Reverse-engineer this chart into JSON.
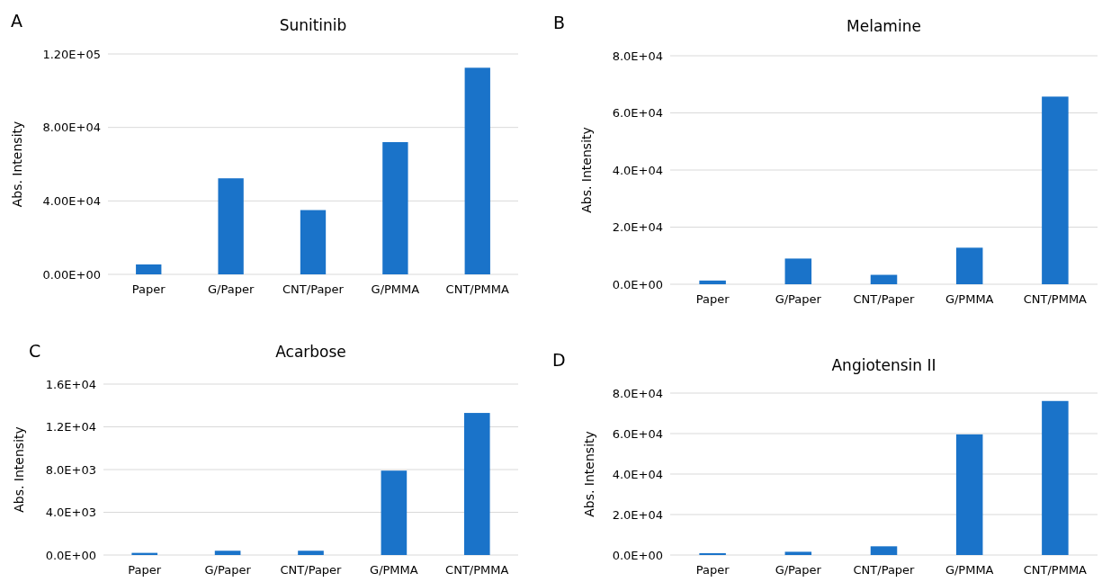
{
  "chart_data": [
    {
      "type": "bar",
      "title": "Sunitinib",
      "ylabel": "Abs. Intensity",
      "annotations": [
        "A"
      ],
      "categories": [
        "Paper",
        "G/Paper",
        "CNT/Paper",
        "G/PMMA",
        "CNT/PMMA"
      ],
      "values": [
        5400,
        52300,
        35000,
        72000,
        112500
      ],
      "color": "#1a73c9",
      "ylim": [
        0,
        120000
      ],
      "yticks": [
        {
          "value": 0,
          "label": "0.00E+00"
        },
        {
          "value": 40000,
          "label": "4.00E+04"
        },
        {
          "value": 80000,
          "label": "8.00E+04"
        },
        {
          "value": 120000,
          "label": "1.20E+05"
        }
      ],
      "grid": "y"
    },
    {
      "type": "bar",
      "title": "Melamine",
      "ylabel": "Abs. Intensity",
      "annotations": [
        "B"
      ],
      "categories": [
        "Paper",
        "G/Paper",
        "CNT/Paper",
        "G/PMMA",
        "CNT/PMMA"
      ],
      "values": [
        1300,
        9000,
        3300,
        12800,
        65700
      ],
      "color": "#1a73c9",
      "ylim": [
        0,
        80000
      ],
      "yticks": [
        {
          "value": 0,
          "label": "0.0E+00"
        },
        {
          "value": 20000,
          "label": "2.0E+04"
        },
        {
          "value": 40000,
          "label": "4.0E+04"
        },
        {
          "value": 60000,
          "label": "6.0E+04"
        },
        {
          "value": 80000,
          "label": "8.0E+04"
        }
      ],
      "grid": "y"
    },
    {
      "type": "bar",
      "title": "Acarbose",
      "ylabel": "Abs. Intensity",
      "annotations": [
        "C"
      ],
      "categories": [
        "Paper",
        "G/Paper",
        "CNT/Paper",
        "G/PMMA",
        "CNT/PMMA"
      ],
      "values": [
        200,
        400,
        400,
        7900,
        13300
      ],
      "color": "#1a73c9",
      "ylim": [
        0,
        16000
      ],
      "yticks": [
        {
          "value": 0,
          "label": "0.0E+00"
        },
        {
          "value": 4000,
          "label": "4.0E+03"
        },
        {
          "value": 8000,
          "label": "8.0E+03"
        },
        {
          "value": 12000,
          "label": "1.2E+04"
        },
        {
          "value": 16000,
          "label": "1.6E+04"
        }
      ],
      "grid": "y"
    },
    {
      "type": "bar",
      "title": "Angiotensin II",
      "ylabel": "Abs. Intensity",
      "annotations": [
        "D"
      ],
      "categories": [
        "Paper",
        "G/Paper",
        "CNT/Paper",
        "G/PMMA",
        "CNT/PMMA"
      ],
      "values": [
        900,
        1600,
        4300,
        59600,
        76100
      ],
      "color": "#1a73c9",
      "ylim": [
        0,
        80000
      ],
      "yticks": [
        {
          "value": 0,
          "label": "0.0E+00"
        },
        {
          "value": 20000,
          "label": "2.0E+04"
        },
        {
          "value": 40000,
          "label": "4.0E+04"
        },
        {
          "value": 60000,
          "label": "6.0E+04"
        },
        {
          "value": 80000,
          "label": "8.0E+04"
        }
      ],
      "grid": "y"
    }
  ]
}
